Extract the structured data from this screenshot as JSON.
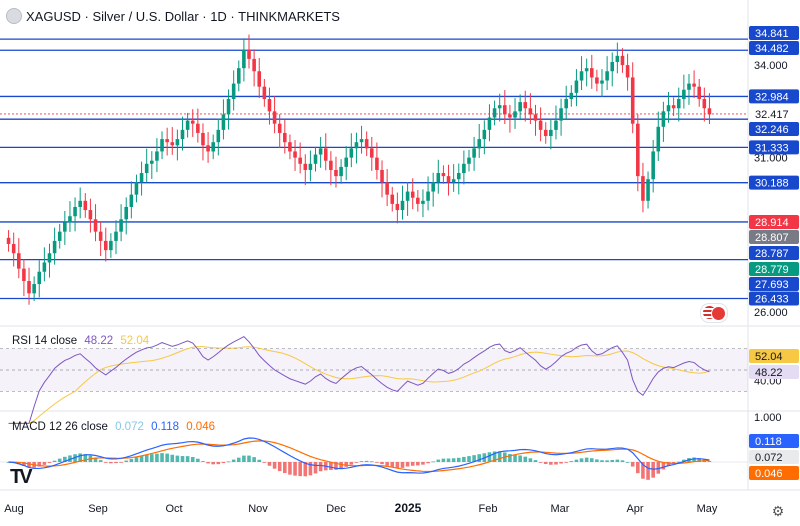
{
  "header": {
    "title": "XAGUSD · Silver / U.S. Dollar · 1D · THINKMARKETS"
  },
  "chart_data": {
    "type": "candlestick",
    "price_axis_ticks": [
      "34.000",
      "31.000",
      "26.000"
    ],
    "ylim": [
      25.8,
      35.3
    ],
    "levels": [
      {
        "value": 34.841,
        "label": "34.841",
        "kind": "line"
      },
      {
        "value": 34.482,
        "label": "34.482",
        "kind": "line"
      },
      {
        "value": 32.984,
        "label": "32.984",
        "kind": "line"
      },
      {
        "value": 32.417,
        "label": "32.417",
        "kind": "price"
      },
      {
        "value": 32.246,
        "label": "32.246",
        "kind": "line"
      },
      {
        "value": 31.333,
        "label": "31.333",
        "kind": "line"
      },
      {
        "value": 30.188,
        "label": "30.188",
        "kind": "line"
      },
      {
        "value": 28.914,
        "label": "28.914",
        "kind": "red"
      },
      {
        "value": 28.807,
        "label": "28.807",
        "kind": "grey"
      },
      {
        "value": 28.787,
        "label": "28.787",
        "kind": "line"
      },
      {
        "value": 28.779,
        "label": "28.779",
        "kind": "green"
      },
      {
        "value": 27.693,
        "label": "27.693",
        "kind": "plainlabel"
      },
      {
        "value": 26.433,
        "label": "26.433",
        "kind": "line"
      }
    ],
    "level_lines": [
      34.841,
      34.482,
      32.984,
      32.246,
      31.333,
      30.188,
      28.914,
      27.693,
      26.433
    ],
    "time_axis": [
      "Aug",
      "Sep",
      "Oct",
      "Nov",
      "Dec",
      "2025",
      "Feb",
      "Mar",
      "Apr",
      "May"
    ],
    "closes": [
      28.2,
      27.9,
      27.4,
      27.0,
      26.6,
      26.9,
      27.3,
      27.6,
      27.9,
      28.3,
      28.6,
      28.9,
      29.1,
      29.4,
      29.6,
      29.3,
      29.0,
      28.6,
      28.3,
      28.0,
      28.3,
      28.6,
      29.0,
      29.4,
      29.8,
      30.2,
      30.5,
      30.8,
      30.9,
      31.2,
      31.6,
      31.5,
      31.4,
      31.6,
      31.9,
      32.2,
      32.1,
      31.8,
      31.4,
      31.2,
      31.5,
      31.9,
      32.4,
      32.9,
      33.4,
      33.9,
      34.5,
      34.2,
      33.8,
      33.3,
      32.9,
      32.5,
      32.1,
      31.8,
      31.5,
      31.2,
      31.0,
      30.8,
      30.6,
      30.8,
      31.1,
      31.3,
      30.9,
      30.6,
      30.4,
      30.7,
      31.0,
      31.3,
      31.5,
      31.6,
      31.3,
      31.0,
      30.6,
      30.2,
      29.8,
      29.5,
      29.3,
      29.6,
      29.9,
      29.7,
      29.5,
      29.6,
      29.9,
      30.2,
      30.5,
      30.4,
      30.2,
      30.3,
      30.5,
      30.8,
      31.0,
      31.3,
      31.6,
      31.9,
      32.3,
      32.6,
      32.7,
      32.4,
      32.3,
      32.5,
      32.8,
      32.6,
      32.4,
      32.2,
      31.9,
      31.7,
      31.9,
      32.2,
      32.6,
      32.9,
      33.1,
      33.5,
      33.8,
      33.9,
      33.6,
      33.4,
      33.5,
      33.8,
      34.1,
      34.3,
      34.0,
      33.6,
      32.1,
      30.4,
      29.6,
      30.3,
      31.2,
      32.0,
      32.5,
      32.7,
      32.6,
      32.9,
      33.2,
      33.4,
      33.3,
      32.9,
      32.6,
      32.4
    ],
    "rsi": {
      "label": "RSI 14 close",
      "value_label": "48.22",
      "ma_label": "52.04",
      "ylim": [
        20,
        80
      ],
      "axis_tick": "40.00",
      "tags": [
        52.04,
        48.22
      ]
    },
    "macd": {
      "label": "MACD 12 26 close",
      "macd_label": "0.072",
      "signal_label": "0.118",
      "hist_label": "0.046",
      "axis_tick": "1.000",
      "tags": [
        0.118,
        0.072,
        0.046
      ]
    },
    "colors": {
      "up": "#089981",
      "down": "#f23645",
      "level": "#1848cc",
      "rsi": "#7e57c2",
      "rsi_ma": "#f7c843",
      "macd": "#2962ff",
      "signal": "#ff6d00",
      "hist_up": "#26a69a",
      "hist_down": "#ef5350"
    }
  }
}
